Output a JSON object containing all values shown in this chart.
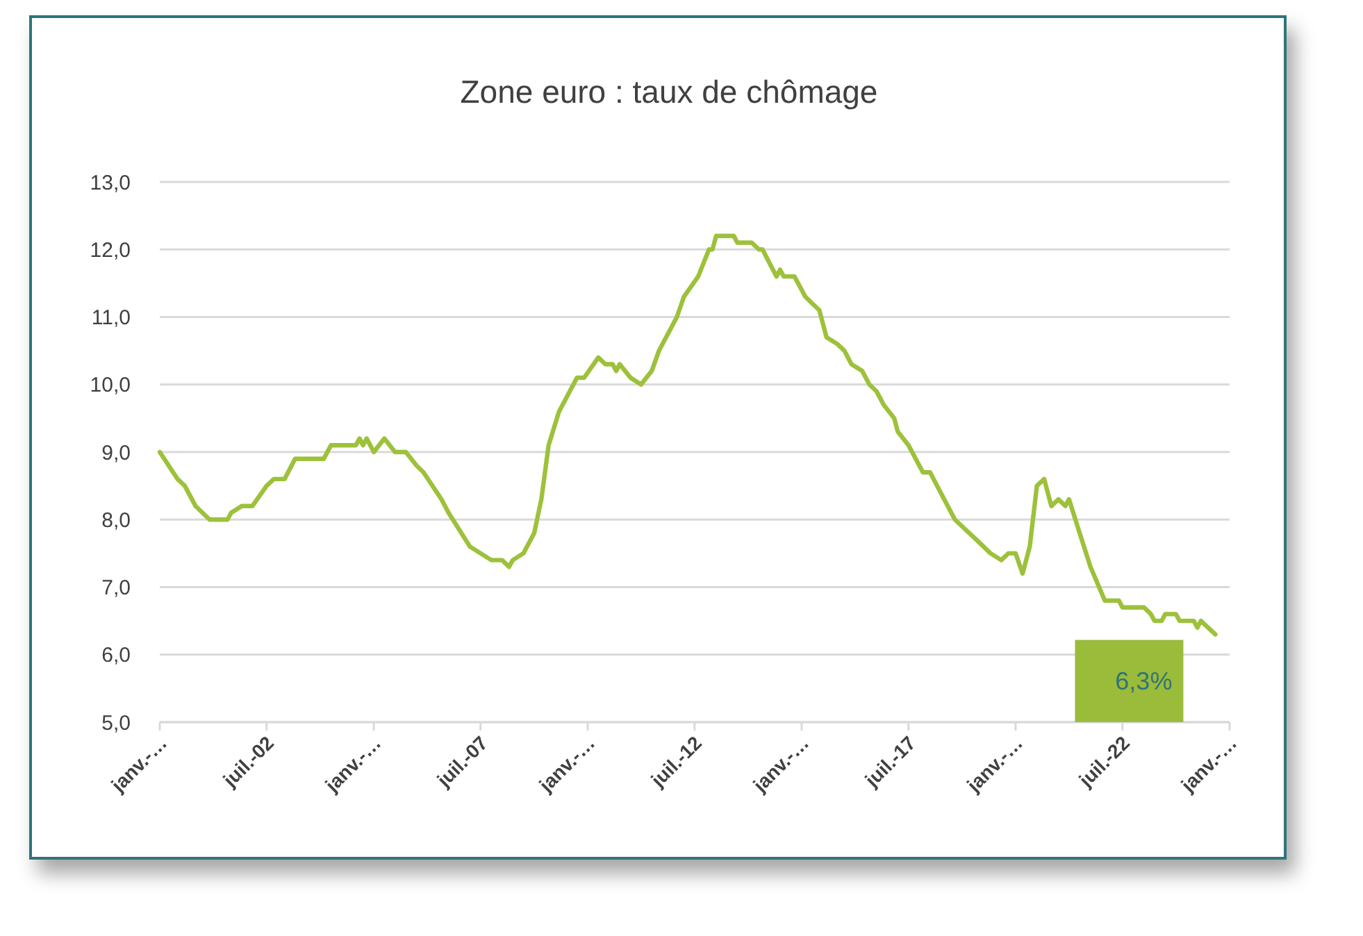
{
  "chart_data": {
    "type": "line",
    "title": "Zone euro : taux de chômage",
    "grid": "y",
    "marker": "none",
    "line_style": "solid",
    "xlim": [
      "2000-01",
      "2025-01"
    ],
    "xticks": [
      {
        "value": "2000-01",
        "label": "janv.-…"
      },
      {
        "value": "2002-07",
        "label": "juil.-02"
      },
      {
        "value": "2005-01",
        "label": "janv.-…"
      },
      {
        "value": "2007-07",
        "label": "juil.-07"
      },
      {
        "value": "2010-01",
        "label": "janv.-…"
      },
      {
        "value": "2012-07",
        "label": "juil.-12"
      },
      {
        "value": "2015-01",
        "label": "janv.-…"
      },
      {
        "value": "2017-07",
        "label": "juil.-17"
      },
      {
        "value": "2020-01",
        "label": "janv.-…"
      },
      {
        "value": "2022-07",
        "label": "juil.-22"
      },
      {
        "value": "2025-01",
        "label": "janv.-…"
      }
    ],
    "ylim": [
      5,
      13
    ],
    "yticks": [
      {
        "value": 5,
        "label": "5,0"
      },
      {
        "value": 6,
        "label": "6,0"
      },
      {
        "value": 7,
        "label": "7,0"
      },
      {
        "value": 8,
        "label": "8,0"
      },
      {
        "value": 9,
        "label": "9,0"
      },
      {
        "value": 10,
        "label": "10,0"
      },
      {
        "value": 11,
        "label": "11,0"
      },
      {
        "value": 12,
        "label": "12,0"
      },
      {
        "value": 13,
        "label": "13,0"
      }
    ],
    "annotations": [
      {
        "text": "6,3%",
        "x": "2024-09",
        "y": 6.3
      }
    ],
    "series": [
      {
        "color": "#9dc13b",
        "x": [
          "2000-01",
          "2000-06",
          "2000-08",
          "2000-11",
          "2001-03",
          "2001-08",
          "2001-09",
          "2001-12",
          "2002-03",
          "2002-07",
          "2002-09",
          "2002-12",
          "2003-03",
          "2003-11",
          "2004-01",
          "2004-08",
          "2004-09",
          "2004-10",
          "2004-11",
          "2005-01",
          "2005-04",
          "2005-07",
          "2005-10",
          "2006-01",
          "2006-03",
          "2006-08",
          "2006-10",
          "2007-04",
          "2007-07",
          "2007-10",
          "2008-01",
          "2008-03",
          "2008-04",
          "2008-07",
          "2008-10",
          "2008-12",
          "2009-02",
          "2009-05",
          "2009-10",
          "2009-12",
          "2010-04",
          "2010-06",
          "2010-08",
          "2010-09",
          "2010-10",
          "2011-01",
          "2011-04",
          "2011-07",
          "2011-09",
          "2011-11",
          "2012-02",
          "2012-04",
          "2012-08",
          "2012-11",
          "2012-12",
          "2013-01",
          "2013-06",
          "2013-07",
          "2013-11",
          "2014-01",
          "2014-02",
          "2014-04",
          "2014-06",
          "2014-07",
          "2014-08",
          "2014-11",
          "2015-02",
          "2015-04",
          "2015-06",
          "2015-08",
          "2015-11",
          "2016-01",
          "2016-03",
          "2016-06",
          "2016-08",
          "2016-10",
          "2016-12",
          "2017-03",
          "2017-04",
          "2017-07",
          "2017-11",
          "2018-01",
          "2018-04",
          "2018-08",
          "2018-10",
          "2019-02",
          "2019-06",
          "2019-09",
          "2019-11",
          "2020-01",
          "2020-03",
          "2020-05",
          "2020-07",
          "2020-09",
          "2020-11",
          "2021-01",
          "2021-03",
          "2021-04",
          "2021-07",
          "2021-10",
          "2022-02",
          "2022-06",
          "2022-07",
          "2023-01",
          "2023-03",
          "2023-04",
          "2023-06",
          "2023-07",
          "2023-10",
          "2023-11",
          "2024-03",
          "2024-04",
          "2024-05",
          "2024-07",
          "2024-09"
        ],
        "values": [
          9.0,
          8.6,
          8.5,
          8.2,
          8.0,
          8.0,
          8.1,
          8.2,
          8.2,
          8.5,
          8.6,
          8.6,
          8.9,
          8.9,
          9.1,
          9.1,
          9.2,
          9.1,
          9.2,
          9.0,
          9.2,
          9.0,
          9.0,
          8.8,
          8.7,
          8.3,
          8.1,
          7.6,
          7.5,
          7.4,
          7.4,
          7.3,
          7.4,
          7.5,
          7.8,
          8.3,
          9.1,
          9.6,
          10.1,
          10.1,
          10.4,
          10.3,
          10.3,
          10.2,
          10.3,
          10.1,
          10.0,
          10.2,
          10.5,
          10.7,
          11.0,
          11.3,
          11.6,
          12.0,
          12.0,
          12.2,
          12.2,
          12.1,
          12.1,
          12.0,
          12.0,
          11.8,
          11.6,
          11.7,
          11.6,
          11.6,
          11.3,
          11.2,
          11.1,
          10.7,
          10.6,
          10.5,
          10.3,
          10.2,
          10.0,
          9.9,
          9.7,
          9.5,
          9.3,
          9.1,
          8.7,
          8.7,
          8.4,
          8.0,
          7.9,
          7.7,
          7.5,
          7.4,
          7.5,
          7.5,
          7.2,
          7.6,
          8.5,
          8.6,
          8.2,
          8.3,
          8.2,
          8.3,
          7.8,
          7.3,
          6.8,
          6.8,
          6.7,
          6.7,
          6.6,
          6.5,
          6.5,
          6.6,
          6.6,
          6.5,
          6.5,
          6.4,
          6.5,
          6.4,
          6.3
        ]
      }
    ]
  }
}
